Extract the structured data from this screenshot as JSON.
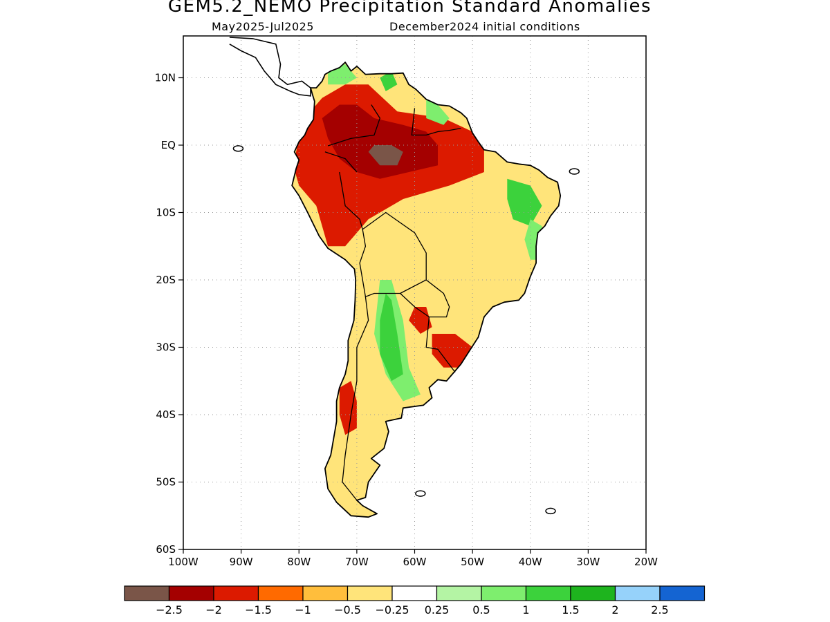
{
  "header": {
    "title": "GEM5.2_NEMO Precipitation Standard Anomalies",
    "period": "May2025-Jul2025",
    "initial_conditions": "December2024 initial conditions"
  },
  "map": {
    "region": "South America",
    "lon_range": [
      -100,
      -20
    ],
    "lat_range": [
      -60,
      16
    ],
    "lat_ticks": [
      {
        "v": 10,
        "label": "10N"
      },
      {
        "v": 0,
        "label": "EQ"
      },
      {
        "v": -10,
        "label": "10S"
      },
      {
        "v": -20,
        "label": "20S"
      },
      {
        "v": -30,
        "label": "30S"
      },
      {
        "v": -40,
        "label": "40S"
      },
      {
        "v": -50,
        "label": "50S"
      },
      {
        "v": -60,
        "label": "60S"
      }
    ],
    "lon_ticks": [
      {
        "v": -100,
        "label": "100W"
      },
      {
        "v": -90,
        "label": "90W"
      },
      {
        "v": -80,
        "label": "80W"
      },
      {
        "v": -70,
        "label": "70W"
      },
      {
        "v": -60,
        "label": "60W"
      },
      {
        "v": -50,
        "label": "50W"
      },
      {
        "v": -40,
        "label": "40W"
      },
      {
        "v": -30,
        "label": "30W"
      },
      {
        "v": -20,
        "label": "20W"
      }
    ],
    "grid": "dotted",
    "anomaly_regions": [
      {
        "name": "northwest-amazon-dry",
        "level": -1.5,
        "poly": [
          [
            -79,
            4
          ],
          [
            -76,
            7
          ],
          [
            -72,
            9
          ],
          [
            -68,
            9
          ],
          [
            -63,
            5
          ],
          [
            -55,
            4
          ],
          [
            -50,
            2
          ],
          [
            -48,
            0
          ],
          [
            -48,
            -4
          ],
          [
            -54,
            -6
          ],
          [
            -62,
            -8
          ],
          [
            -68,
            -11
          ],
          [
            -72,
            -15
          ],
          [
            -75,
            -15
          ],
          [
            -77,
            -9
          ],
          [
            -80,
            -6
          ],
          [
            -81,
            -3
          ],
          [
            -80,
            1
          ]
        ]
      },
      {
        "name": "amazon-drier-core",
        "level": -2,
        "poly": [
          [
            -76,
            4
          ],
          [
            -73,
            6
          ],
          [
            -70,
            6
          ],
          [
            -67,
            4
          ],
          [
            -62,
            3
          ],
          [
            -58,
            2
          ],
          [
            -56,
            0
          ],
          [
            -56,
            -3
          ],
          [
            -61,
            -4
          ],
          [
            -66,
            -5
          ],
          [
            -70,
            -4
          ],
          [
            -73,
            -2
          ],
          [
            -75,
            1
          ]
        ]
      },
      {
        "name": "amazon-driest-core",
        "level": -2.5,
        "poly": [
          [
            -67,
            0
          ],
          [
            -64,
            0
          ],
          [
            -62,
            -1
          ],
          [
            -63,
            -3
          ],
          [
            -66,
            -3
          ],
          [
            -68,
            -1
          ]
        ]
      },
      {
        "name": "south-brazil-dry",
        "level": -1.5,
        "poly": [
          [
            -57,
            -28
          ],
          [
            -53,
            -28
          ],
          [
            -50,
            -30
          ],
          [
            -52,
            -33
          ],
          [
            -55,
            -33
          ],
          [
            -57,
            -31
          ]
        ]
      },
      {
        "name": "paraguay-dry",
        "level": -1.5,
        "poly": [
          [
            -60,
            -24
          ],
          [
            -58,
            -24
          ],
          [
            -57,
            -27
          ],
          [
            -59,
            -28
          ],
          [
            -61,
            -26
          ]
        ]
      },
      {
        "name": "central-chile-dry",
        "level": -1.5,
        "poly": [
          [
            -73,
            -36
          ],
          [
            -71,
            -35
          ],
          [
            -70,
            -38
          ],
          [
            -70,
            -42
          ],
          [
            -72,
            -43
          ],
          [
            -73,
            -40
          ]
        ]
      },
      {
        "name": "north-coast-wet",
        "level": 0.5,
        "poly": [
          [
            -75,
            12
          ],
          [
            -72,
            12
          ],
          [
            -70,
            10
          ],
          [
            -72,
            9
          ],
          [
            -75,
            9
          ]
        ]
      },
      {
        "name": "guiana-wet",
        "level": 0.5,
        "poly": [
          [
            -58,
            7
          ],
          [
            -56,
            6
          ],
          [
            -54,
            4
          ],
          [
            -55,
            3
          ],
          [
            -58,
            4
          ]
        ]
      },
      {
        "name": "venezuela-wet",
        "level": 1,
        "poly": [
          [
            -66,
            10
          ],
          [
            -64,
            11
          ],
          [
            -63,
            9
          ],
          [
            -65,
            8
          ]
        ]
      },
      {
        "name": "northeast-brazil-wet",
        "level": 1,
        "poly": [
          [
            -44,
            -5
          ],
          [
            -40,
            -6
          ],
          [
            -38,
            -9
          ],
          [
            -40,
            -12
          ],
          [
            -43,
            -11
          ],
          [
            -44,
            -8
          ]
        ]
      },
      {
        "name": "bahia-wet",
        "level": 0.5,
        "poly": [
          [
            -40,
            -11
          ],
          [
            -38,
            -12
          ],
          [
            -38,
            -17
          ],
          [
            -40,
            -17
          ],
          [
            -41,
            -14
          ]
        ]
      },
      {
        "name": "argentina-wet",
        "level": 0.5,
        "poly": [
          [
            -66,
            -20
          ],
          [
            -64,
            -20
          ],
          [
            -62,
            -26
          ],
          [
            -61,
            -33
          ],
          [
            -59,
            -37
          ],
          [
            -62,
            -38
          ],
          [
            -65,
            -34
          ],
          [
            -67,
            -28
          ]
        ]
      },
      {
        "name": "argentina-wetter",
        "level": 1,
        "poly": [
          [
            -65,
            -22
          ],
          [
            -64,
            -23
          ],
          [
            -63,
            -28
          ],
          [
            -62,
            -34
          ],
          [
            -64,
            -35
          ],
          [
            -66,
            -31
          ],
          [
            -66,
            -26
          ]
        ]
      }
    ],
    "islands": [
      {
        "name": "galapagos",
        "lon": -90.5,
        "lat": -0.5
      },
      {
        "name": "falklands",
        "lon": -59,
        "lat": -51.7
      },
      {
        "name": "south-georgia",
        "lon": -36.5,
        "lat": -54.3
      },
      {
        "name": "fernando-de-noronha",
        "lon": -32.4,
        "lat": -3.9
      }
    ]
  },
  "colorbar": {
    "colors": [
      "#7a5548",
      "#a40000",
      "#dc1a00",
      "#ff6a00",
      "#ffbe3c",
      "#ffe47a",
      "#ffffff",
      "#b4f4a4",
      "#7eee6e",
      "#3cd23c",
      "#1eb41e",
      "#96d2fa",
      "#1464d2"
    ],
    "labels": [
      "−2.5",
      "−2",
      "−1.5",
      "−1",
      "−0.5",
      "−0.25",
      "0.25",
      "0.5",
      "1",
      "1.5",
      "2",
      "2.5"
    ]
  }
}
